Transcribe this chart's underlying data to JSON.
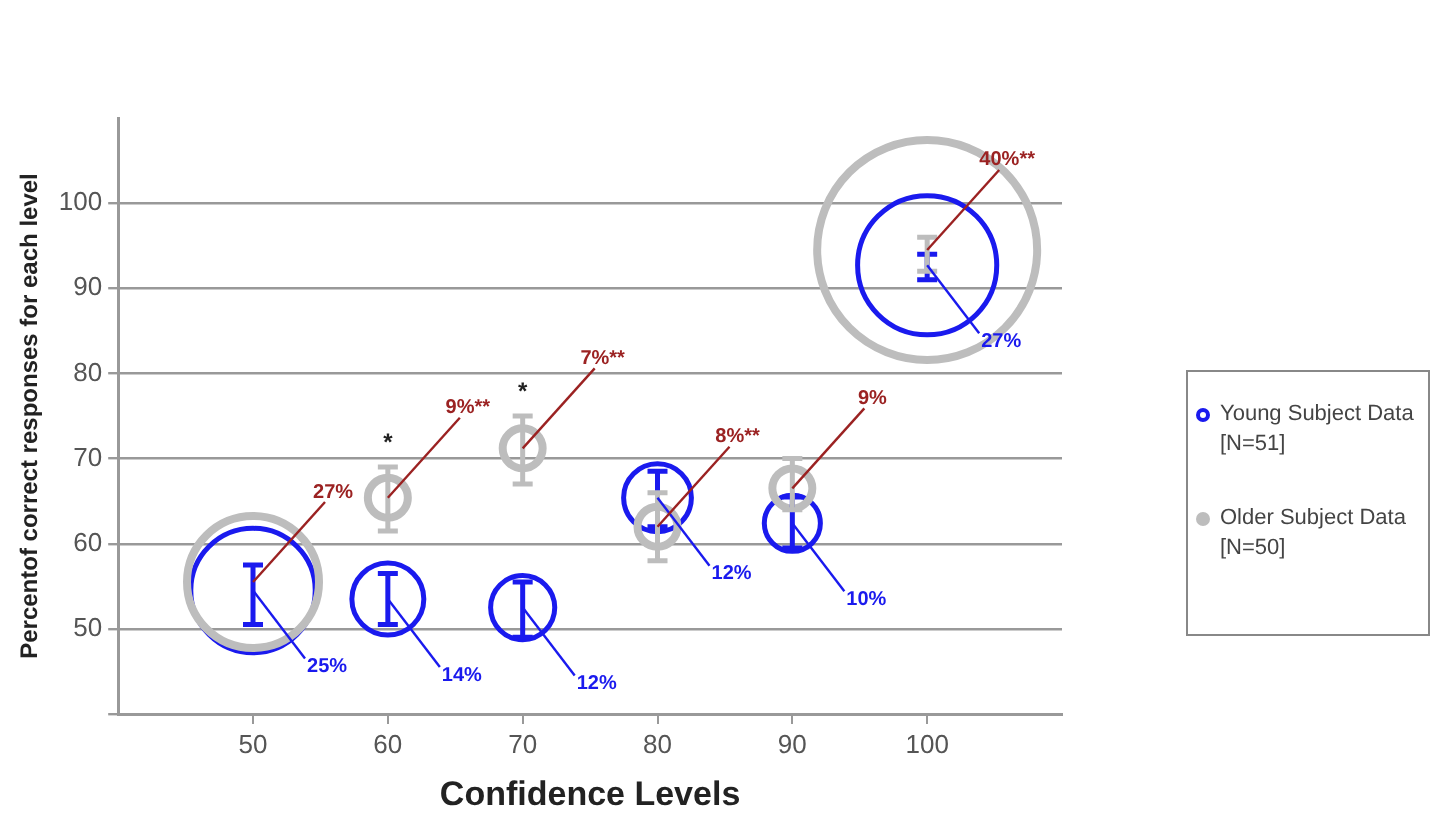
{
  "chart_data": {
    "type": "bubble",
    "xlabel": "Confidence Levels",
    "ylabel": "Percentof correct responses for each level",
    "x": [
      50,
      60,
      70,
      80,
      90,
      100
    ],
    "series": [
      {
        "name": "Young Subject Data [N=51]",
        "color": "#1a1aee",
        "values": [
          54.5,
          53.5,
          52.5,
          65.4,
          62.4,
          92.7
        ],
        "sizes": [
          0.32,
          0.107,
          0.085,
          0.095,
          0.065,
          0.4
        ],
        "errors": [
          [
            50.5,
            57.5
          ],
          [
            50.5,
            56.5
          ],
          [
            49,
            55.5
          ],
          [
            62,
            68.5
          ],
          [
            59.5,
            65.5
          ],
          [
            91,
            94
          ]
        ]
      },
      {
        "name": "Older Subject Data [N=50]",
        "color": "#bdbdbd",
        "values": [
          55.5,
          65.4,
          71.2,
          62,
          66.5,
          94.5
        ],
        "sizes": [
          0.36,
          0.033,
          0.033,
          0.033,
          0.033,
          1
        ],
        "errors": [
          null,
          [
            61.5,
            69
          ],
          [
            67,
            75
          ],
          [
            58,
            66
          ],
          [
            64,
            70
          ],
          [
            92,
            96
          ]
        ]
      }
    ],
    "annotations": [
      {
        "text": "25%",
        "x": 50,
        "y": 54.5
      },
      {
        "text": "14%",
        "x": 60,
        "y": 53.5
      },
      {
        "text": "12%",
        "x": 70,
        "y": 52.5
      },
      {
        "text": "12%",
        "x": 80,
        "y": 65.4
      },
      {
        "text": "10%",
        "x": 90,
        "y": 62.4
      },
      {
        "text": "27%",
        "x": 100,
        "y": 92.7
      },
      {
        "text": "27%",
        "x": 50,
        "y": 55.5
      },
      {
        "text": "9%**",
        "x": 60,
        "y": 65.4
      },
      {
        "text": "7%**",
        "x": 70,
        "y": 71.2
      },
      {
        "text": "8%**",
        "x": 80,
        "y": 62
      },
      {
        "text": "9%",
        "x": 90,
        "y": 66.5
      },
      {
        "text": "40%**",
        "x": 100,
        "y": 94.5
      },
      {
        "text": "*",
        "x": 60,
        "y": 69
      },
      {
        "text": "*",
        "x": 70,
        "y": 75
      }
    ],
    "xlim": [
      40,
      110
    ],
    "xticks": [
      50,
      60,
      70,
      80,
      90,
      100
    ],
    "ylim": [
      40,
      110
    ],
    "yticks": [
      {
        "value": 40,
        "label": null
      },
      50,
      60,
      70,
      80,
      90,
      100
    ],
    "grid": "y",
    "legend": "right",
    "marker": "circle"
  }
}
